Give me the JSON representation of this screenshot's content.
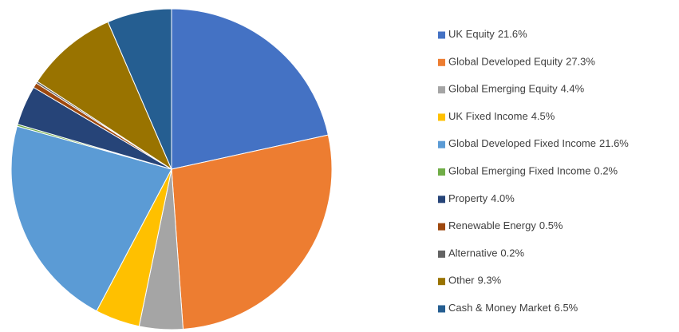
{
  "chart_data": {
    "type": "pie",
    "categories": [
      "UK Equity",
      "Global Developed Equity",
      "Global Emerging Equity",
      "UK Fixed Income",
      "Global Developed Fixed Income",
      "Global Emerging Fixed Income",
      "Property",
      "Renewable Energy",
      "Alternative",
      "Other",
      "Cash & Money Market"
    ],
    "values": [
      21.6,
      27.3,
      4.4,
      4.5,
      21.6,
      0.2,
      4.0,
      0.5,
      0.2,
      9.3,
      6.5
    ],
    "value_labels": [
      "21.6%",
      "27.3%",
      "4.4%",
      "4.5%",
      "21.6%",
      "0.2%",
      "4.0%",
      "0.5%",
      "0.2%",
      "9.3%",
      "6.5%"
    ],
    "colors": [
      "#4472c4",
      "#ed7d31",
      "#a5a5a5",
      "#ffc000",
      "#5b9bd5",
      "#70ad47",
      "#264478",
      "#9e480e",
      "#636363",
      "#997300",
      "#255e91"
    ],
    "legend": "right"
  }
}
